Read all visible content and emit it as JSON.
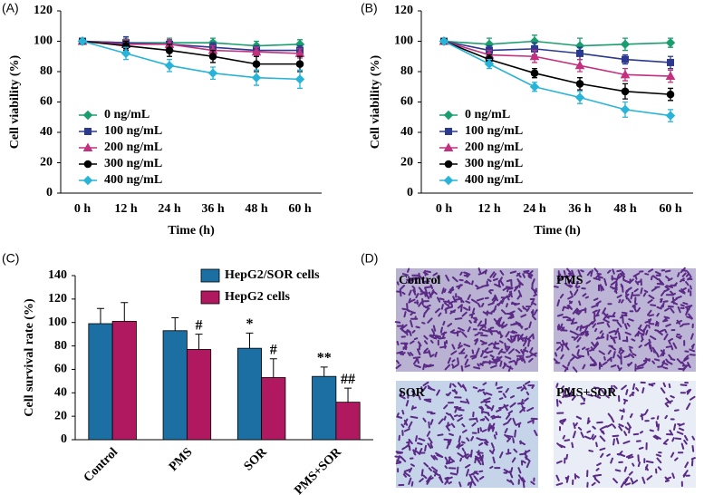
{
  "chart_data": [
    {
      "type": "line",
      "panel_label": "(A)",
      "x_label": "Time (h)",
      "y_label": "Cell viability (%)",
      "categories": [
        "0 h",
        "12 h",
        "24 h",
        "36 h",
        "48 h",
        "60 h"
      ],
      "ylim": [
        0,
        120
      ],
      "yticks": [
        0,
        20,
        40,
        60,
        80,
        100,
        120
      ],
      "grid": false,
      "legend": "lower left",
      "series": [
        {
          "name": "0 ng/mL",
          "color": "#1b9e6e",
          "marker": "diamond",
          "values": [
            100,
            99,
            99,
            99,
            97,
            98
          ],
          "errors": [
            1,
            3,
            3,
            3,
            3,
            3
          ]
        },
        {
          "name": "100 ng/mL",
          "color": "#2b3990",
          "marker": "square",
          "values": [
            100,
            99,
            98,
            96,
            94,
            94
          ],
          "errors": [
            1,
            4,
            3,
            3,
            3,
            3
          ]
        },
        {
          "name": "200 ng/mL",
          "color": "#c2307e",
          "marker": "triangle",
          "values": [
            100,
            98,
            98,
            94,
            93,
            92
          ],
          "errors": [
            1,
            3,
            3,
            3,
            3,
            3
          ]
        },
        {
          "name": "300 ng/mL",
          "color": "#000000",
          "marker": "circle",
          "values": [
            100,
            97,
            94,
            90,
            85,
            85
          ],
          "errors": [
            1,
            3,
            4,
            4,
            5,
            5
          ]
        },
        {
          "name": "400 ng/mL",
          "color": "#27b4d8",
          "marker": "diamond",
          "values": [
            100,
            92,
            84,
            79,
            76,
            75
          ],
          "errors": [
            1,
            4,
            4,
            4,
            5,
            6
          ]
        }
      ]
    },
    {
      "type": "line",
      "panel_label": "(B)",
      "x_label": "Time (h)",
      "y_label": "Cell viability (%)",
      "categories": [
        "0 h",
        "12 h",
        "24 h",
        "36 h",
        "48 h",
        "60 h"
      ],
      "ylim": [
        0,
        120
      ],
      "yticks": [
        0,
        20,
        40,
        60,
        80,
        100,
        120
      ],
      "grid": false,
      "legend": "lower left",
      "series": [
        {
          "name": "0 ng/mL",
          "color": "#1b9e6e",
          "marker": "diamond",
          "values": [
            100,
            98,
            100,
            97,
            98,
            99
          ],
          "errors": [
            1,
            4,
            4,
            5,
            4,
            3
          ]
        },
        {
          "name": "100 ng/mL",
          "color": "#2b3990",
          "marker": "square",
          "values": [
            100,
            94,
            95,
            92,
            88,
            86
          ],
          "errors": [
            1,
            3,
            4,
            4,
            3,
            4
          ]
        },
        {
          "name": "200 ng/mL",
          "color": "#c2307e",
          "marker": "triangle",
          "values": [
            100,
            91,
            90,
            84,
            78,
            77
          ],
          "errors": [
            1,
            3,
            4,
            4,
            4,
            4
          ]
        },
        {
          "name": "300 ng/mL",
          "color": "#000000",
          "marker": "circle",
          "values": [
            100,
            88,
            79,
            72,
            67,
            65
          ],
          "errors": [
            1,
            3,
            3,
            4,
            5,
            4
          ]
        },
        {
          "name": "400 ng/mL",
          "color": "#27b4d8",
          "marker": "diamond",
          "values": [
            100,
            85,
            70,
            63,
            55,
            51
          ],
          "errors": [
            1,
            3,
            3,
            4,
            5,
            4
          ]
        }
      ]
    },
    {
      "type": "bar",
      "panel_label": "(C)",
      "y_label": "Cell survival rate (%)",
      "categories": [
        "Control",
        "PMS",
        "SOR",
        "PMS+SOR"
      ],
      "ylim": [
        0,
        140
      ],
      "yticks": [
        0,
        20,
        40,
        60,
        80,
        100,
        120,
        140
      ],
      "grid": false,
      "legend": "upper right",
      "series": [
        {
          "name": "HepG2/SOR cells",
          "color": "#1c6fa3",
          "values": [
            99,
            93,
            78,
            54
          ],
          "errors": [
            13,
            11,
            13,
            8
          ],
          "annotations": [
            null,
            null,
            "*",
            "**"
          ]
        },
        {
          "name": "HepG2 cells",
          "color": "#b0185f",
          "values": [
            101,
            77,
            53,
            32
          ],
          "errors": [
            16,
            13,
            16,
            12
          ],
          "annotations": [
            null,
            "#",
            "#",
            "##"
          ]
        }
      ]
    }
  ],
  "panel_d": {
    "panel_label": "(D)",
    "images": [
      "Control",
      "PMS",
      "SOR",
      "PMS+SOR"
    ]
  }
}
